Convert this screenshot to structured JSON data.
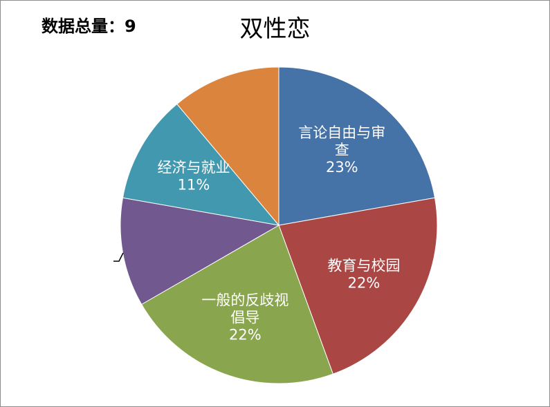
{
  "header": {
    "total_label": "数据总量：9"
  },
  "chart_data": {
    "type": "pie",
    "title": "双性恋",
    "slices": [
      {
        "label": "言论自由与审查",
        "display_lines": [
          "言论自由与审",
          "查"
        ],
        "value": 2,
        "percent_text": "23%",
        "color": "#4572a7",
        "show_label": true
      },
      {
        "label": "教育与校园",
        "display_lines": [
          "教育与校园"
        ],
        "value": 2,
        "percent_text": "22%",
        "color": "#aa4643",
        "show_label": true
      },
      {
        "label": "一般的反歧视倡导",
        "display_lines": [
          "一般的反歧视",
          "倡导"
        ],
        "value": 2,
        "percent_text": "22%",
        "color": "#89a54e",
        "show_label": true
      },
      {
        "label": "",
        "display_lines": [],
        "value": 1,
        "percent_text": "",
        "color": "#71588f",
        "show_label": false
      },
      {
        "label": "经济与就业",
        "display_lines": [
          "经济与就业"
        ],
        "value": 1,
        "percent_text": "11%",
        "color": "#4198af",
        "show_label": true
      },
      {
        "label": "",
        "display_lines": [],
        "value": 1,
        "percent_text": "",
        "color": "#db843d",
        "show_label": false
      }
    ]
  }
}
